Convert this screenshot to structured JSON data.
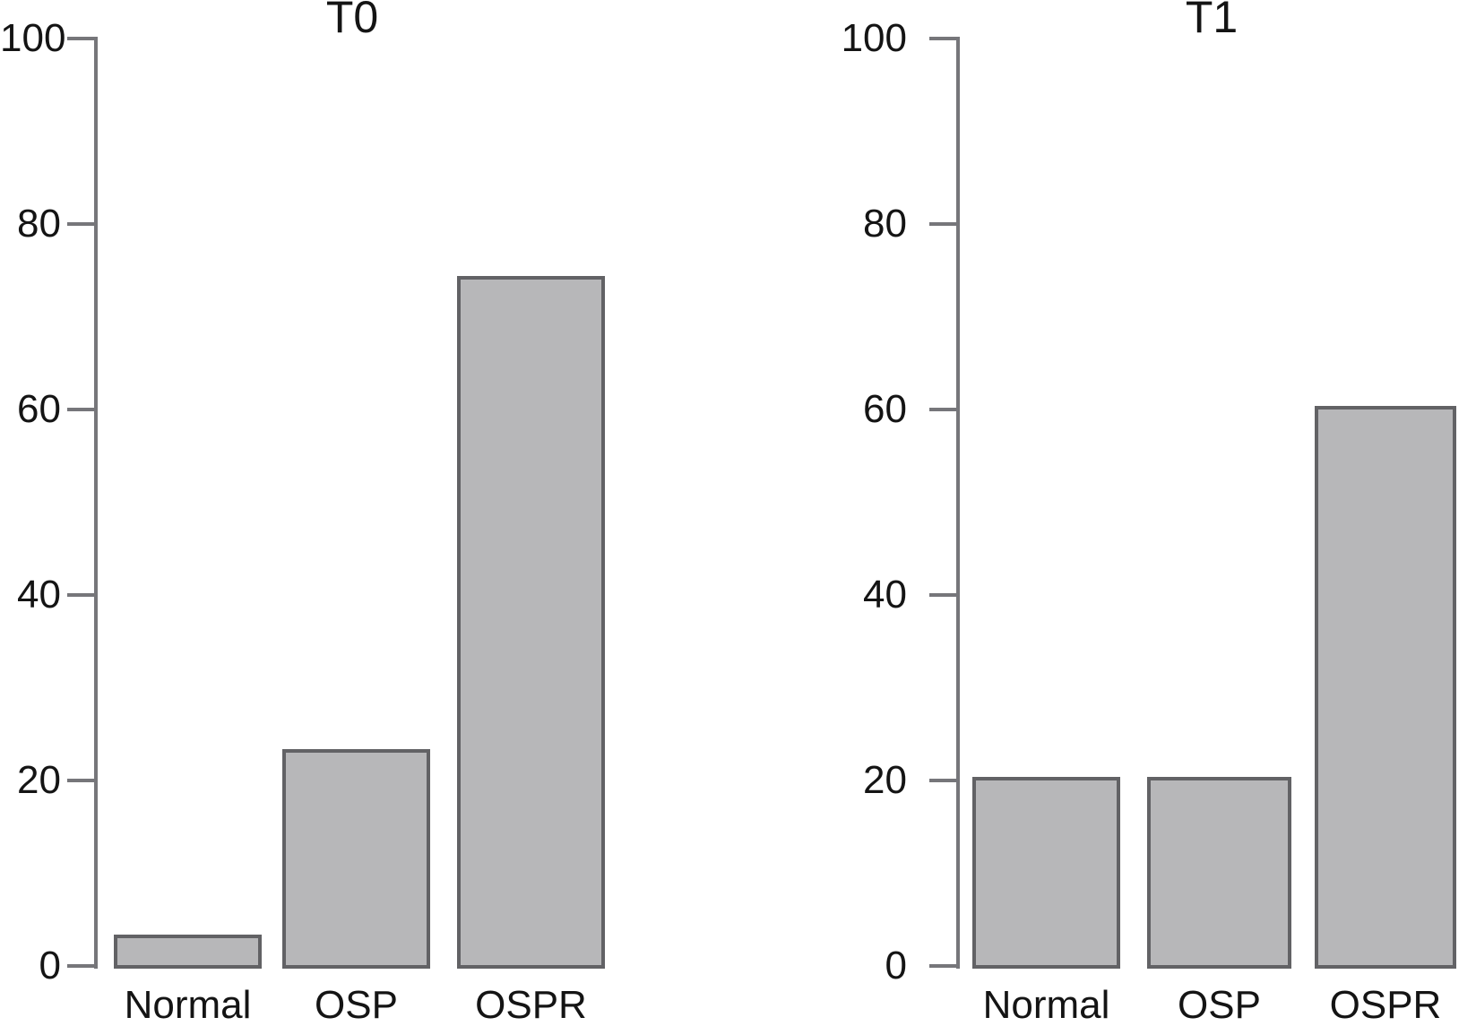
{
  "figure": {
    "background_color": "#ffffff",
    "bar_fill_color": "#b7b7b9",
    "bar_border_color": "#626265",
    "axis_color": "#76767a",
    "text_color": "#141414"
  },
  "chart_data": [
    {
      "type": "bar",
      "title": "T0",
      "categories": [
        "Normal",
        "OSP",
        "OSPR"
      ],
      "values": [
        3,
        23,
        74
      ],
      "xlabel": "",
      "ylabel": "",
      "ylim": [
        0,
        100
      ],
      "yticks": [
        0,
        20,
        40,
        60,
        80,
        100
      ],
      "grid": false,
      "legend": false
    },
    {
      "type": "bar",
      "title": "T1",
      "categories": [
        "Normal",
        "OSP",
        "OSPR"
      ],
      "values": [
        20,
        20,
        60
      ],
      "xlabel": "",
      "ylabel": "",
      "ylim": [
        0,
        100
      ],
      "yticks": [
        0,
        20,
        40,
        60,
        80,
        100
      ],
      "grid": false,
      "legend": false
    }
  ]
}
